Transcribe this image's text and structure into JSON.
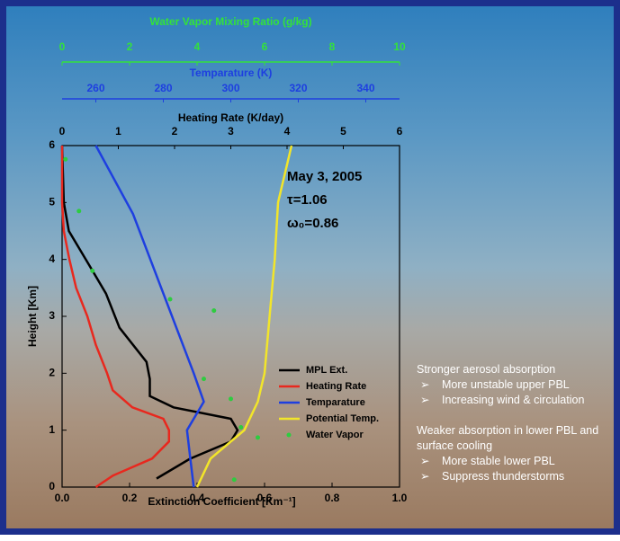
{
  "chart_data": {
    "type": "line",
    "vapor_title": "Water Vapor Mixing Ratio (g/kg)",
    "vapor_xlim": [
      0,
      10
    ],
    "vapor_xticks": [
      0,
      2,
      4,
      6,
      8,
      10
    ],
    "temperature_title": "Temparature (K)",
    "temperature_xlim": [
      250,
      350
    ],
    "temperature_xticks": [
      260,
      280,
      300,
      320,
      340
    ],
    "heating_title": "Heating Rate (K/day)",
    "heating_xlim": [
      0,
      6
    ],
    "heating_xticks": [
      0,
      1,
      2,
      3,
      4,
      5,
      6
    ],
    "x_label": "Extinction Coefficient [Km⁻¹]",
    "xlim": [
      0,
      1
    ],
    "xticks": [
      {
        "value": 0,
        "label": "0.0"
      },
      {
        "value": 0.2,
        "label": "0.2"
      },
      {
        "value": 0.4,
        "label": "0.4"
      },
      {
        "value": 0.6,
        "label": "0.6"
      },
      {
        "value": 0.8,
        "label": "0.8"
      },
      {
        "value": 1,
        "label": "1.0"
      }
    ],
    "y_label": "Height [Km]",
    "ylim": [
      0,
      6
    ],
    "yticks": [
      0,
      1,
      2,
      3,
      4,
      5,
      6
    ],
    "annotations": [
      "May 3, 2005",
      "τ=1.06",
      "ω₀=0.86"
    ],
    "series": [
      {
        "name": "MPL Ext.",
        "color": "#000000",
        "axis": "x",
        "heights": [
          0.15,
          0.5,
          0.8,
          1.0,
          1.2,
          1.4,
          1.6,
          1.9,
          2.2,
          2.5,
          2.8,
          3.1,
          3.4,
          3.8,
          4.2,
          4.5,
          5.0,
          6.0
        ],
        "values": [
          0.28,
          0.38,
          0.5,
          0.52,
          0.5,
          0.33,
          0.26,
          0.26,
          0.25,
          0.21,
          0.17,
          0.15,
          0.13,
          0.09,
          0.05,
          0.02,
          0.005,
          0
        ]
      },
      {
        "name": "Heating Rate",
        "color": "#e8281e",
        "axis": "heating",
        "heights": [
          0,
          0.2,
          0.5,
          0.8,
          1.0,
          1.2,
          1.4,
          1.7,
          2.0,
          2.5,
          3.0,
          3.5,
          4.0,
          4.5,
          5.0,
          6.0
        ],
        "values": [
          0.6,
          0.9,
          1.6,
          1.9,
          1.9,
          1.8,
          1.25,
          0.9,
          0.8,
          0.6,
          0.45,
          0.25,
          0.13,
          0.03,
          0,
          0
        ]
      },
      {
        "name": "Temparature",
        "color": "#1e3fe0",
        "axis": "temperature",
        "heights": [
          0,
          0.5,
          1.0,
          1.5,
          2.0,
          4.8,
          6.0
        ],
        "values": [
          289,
          288,
          287,
          292,
          289,
          271,
          260
        ]
      },
      {
        "name": "Potential Temp.",
        "color": "#f2e52a",
        "axis": "temperature",
        "heights": [
          0,
          0.5,
          1.0,
          1.5,
          2.0,
          3.0,
          4.0,
          5.0,
          6.0
        ],
        "values": [
          290,
          294,
          304,
          308,
          310,
          311.5,
          313,
          314,
          318
        ]
      },
      {
        "name": "Water Vapor",
        "color": "#2ecc40",
        "axis": "vapor",
        "marker": "dot",
        "heights": [
          5.76,
          4.85,
          3.8,
          3.3,
          3.1,
          1.9,
          1.55,
          1.05,
          0.87,
          0.13
        ],
        "values": [
          0.1,
          0.5,
          0.9,
          3.2,
          4.5,
          4.2,
          5.0,
          5.3,
          5.8,
          5.1
        ]
      }
    ]
  },
  "notes": [
    {
      "heading": "Stronger aerosol absorption",
      "items": [
        "More unstable upper PBL",
        "Increasing wind & circulation"
      ]
    },
    {
      "heading": "Weaker absorption in lower PBL and surface cooling",
      "items": [
        "More stable lower PBL",
        "Suppress thunderstorms"
      ]
    }
  ]
}
